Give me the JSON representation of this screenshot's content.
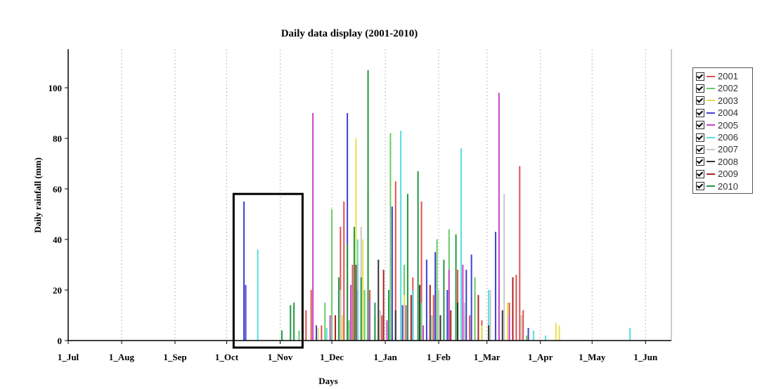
{
  "chart_data": {
    "type": "bar",
    "title": "Daily data display (2001-2010)",
    "xlabel": "Days",
    "ylabel": "Daily rainfall (mm)",
    "ylim": [
      0,
      110
    ],
    "yticks": [
      0,
      20,
      40,
      60,
      80,
      100
    ],
    "x_tick_labels": [
      "1_Jul",
      "1_Aug",
      "1_Sep",
      "1_Oct",
      "1_Nov",
      "1_Dec",
      "1_Jan",
      "1_Feb",
      "1_Mar",
      "1_Apr",
      "1_May",
      "1_Jun"
    ],
    "x_tick_days": [
      0,
      31,
      62,
      92,
      123,
      153,
      184,
      215,
      243,
      274,
      304,
      335
    ],
    "x_range_days": [
      0,
      350
    ],
    "grid": "vertical dashed at month starts",
    "legend_position": "right",
    "highlight_box": {
      "x_start_day": 96,
      "x_end_day": 136,
      "y_top": 58
    },
    "series": [
      {
        "name": "2001",
        "color": "#e05050",
        "points": [
          [
            138,
            12
          ],
          [
            141,
            20
          ],
          [
            147,
            6
          ],
          [
            158,
            45
          ],
          [
            160,
            55
          ],
          [
            165,
            30
          ],
          [
            175,
            20
          ],
          [
            182,
            10
          ],
          [
            190,
            63
          ],
          [
            200,
            25
          ],
          [
            205,
            55
          ],
          [
            212,
            18
          ],
          [
            226,
            28
          ],
          [
            233,
            10
          ],
          [
            240,
            8
          ],
          [
            256,
            15
          ],
          [
            260,
            26
          ],
          [
            262,
            69
          ],
          [
            264,
            12
          ]
        ]
      },
      {
        "name": "2002",
        "color": "#66cc66",
        "points": [
          [
            134,
            4
          ],
          [
            149,
            15
          ],
          [
            153,
            52
          ],
          [
            163,
            8
          ],
          [
            172,
            20
          ],
          [
            178,
            10
          ],
          [
            187,
            82
          ],
          [
            195,
            30
          ],
          [
            205,
            15
          ],
          [
            214,
            40
          ],
          [
            221,
            44
          ],
          [
            230,
            10
          ],
          [
            236,
            25
          ],
          [
            250,
            20
          ],
          [
            266,
            2
          ]
        ]
      },
      {
        "name": "2003",
        "color": "#e8e050",
        "points": [
          [
            145,
            5
          ],
          [
            159,
            10
          ],
          [
            167,
            80
          ],
          [
            171,
            40
          ],
          [
            180,
            8
          ],
          [
            195,
            18
          ],
          [
            210,
            10
          ],
          [
            240,
            6
          ],
          [
            255,
            15
          ],
          [
            283,
            7
          ],
          [
            285,
            6
          ]
        ]
      },
      {
        "name": "2004",
        "color": "#4040d0",
        "points": [
          [
            102,
            55
          ],
          [
            103,
            22
          ],
          [
            144,
            6
          ],
          [
            162,
            90
          ],
          [
            168,
            20
          ],
          [
            188,
            53
          ],
          [
            194,
            14
          ],
          [
            200,
            20
          ],
          [
            208,
            32
          ],
          [
            213,
            35
          ],
          [
            220,
            20
          ],
          [
            231,
            28
          ],
          [
            234,
            34
          ],
          [
            248,
            43
          ],
          [
            258,
            12
          ],
          [
            267,
            5
          ]
        ]
      },
      {
        "name": "2005",
        "color": "#cc44cc",
        "points": [
          [
            142,
            90
          ],
          [
            152,
            10
          ],
          [
            164,
            22
          ],
          [
            175,
            16
          ],
          [
            185,
            8
          ],
          [
            196,
            14
          ],
          [
            206,
            6
          ],
          [
            221,
            28
          ],
          [
            229,
            30
          ],
          [
            250,
            98
          ],
          [
            256,
            10
          ]
        ]
      },
      {
        "name": "2006",
        "color": "#55dddd",
        "points": [
          [
            110,
            36
          ],
          [
            150,
            5
          ],
          [
            168,
            40
          ],
          [
            183,
            10
          ],
          [
            193,
            83
          ],
          [
            200,
            20
          ],
          [
            211,
            10
          ],
          [
            228,
            76
          ],
          [
            244,
            20
          ],
          [
            270,
            4
          ],
          [
            277,
            2
          ],
          [
            326,
            5
          ]
        ]
      },
      {
        "name": "2007",
        "color": "#c8c8c8",
        "points": [
          [
            158,
            20
          ],
          [
            170,
            45
          ],
          [
            181,
            12
          ],
          [
            197,
            12
          ],
          [
            215,
            20
          ],
          [
            230,
            15
          ],
          [
            245,
            20
          ],
          [
            253,
            58
          ],
          [
            263,
            10
          ]
        ]
      },
      {
        "name": "2008",
        "color": "#333333",
        "points": [
          [
            180,
            32
          ],
          [
            190,
            12
          ],
          [
            204,
            22
          ],
          [
            216,
            10
          ],
          [
            226,
            15
          ],
          [
            244,
            6
          ],
          [
            252,
            12
          ]
        ]
      },
      {
        "name": "2009",
        "color": "#aa2222",
        "points": [
          [
            155,
            10
          ],
          [
            167,
            30
          ],
          [
            174,
            60
          ],
          [
            183,
            28
          ],
          [
            199,
            18
          ],
          [
            210,
            22
          ],
          [
            222,
            12
          ],
          [
            238,
            18
          ],
          [
            258,
            25
          ]
        ]
      },
      {
        "name": "2010",
        "color": "#229944",
        "points": [
          [
            124,
            4
          ],
          [
            129,
            14
          ],
          [
            131,
            15
          ],
          [
            157,
            25
          ],
          [
            162,
            38
          ],
          [
            166,
            45
          ],
          [
            170,
            25
          ],
          [
            174,
            107
          ],
          [
            178,
            15
          ],
          [
            186,
            20
          ],
          [
            197,
            58
          ],
          [
            203,
            67
          ],
          [
            218,
            32
          ],
          [
            225,
            42
          ]
        ]
      }
    ]
  }
}
